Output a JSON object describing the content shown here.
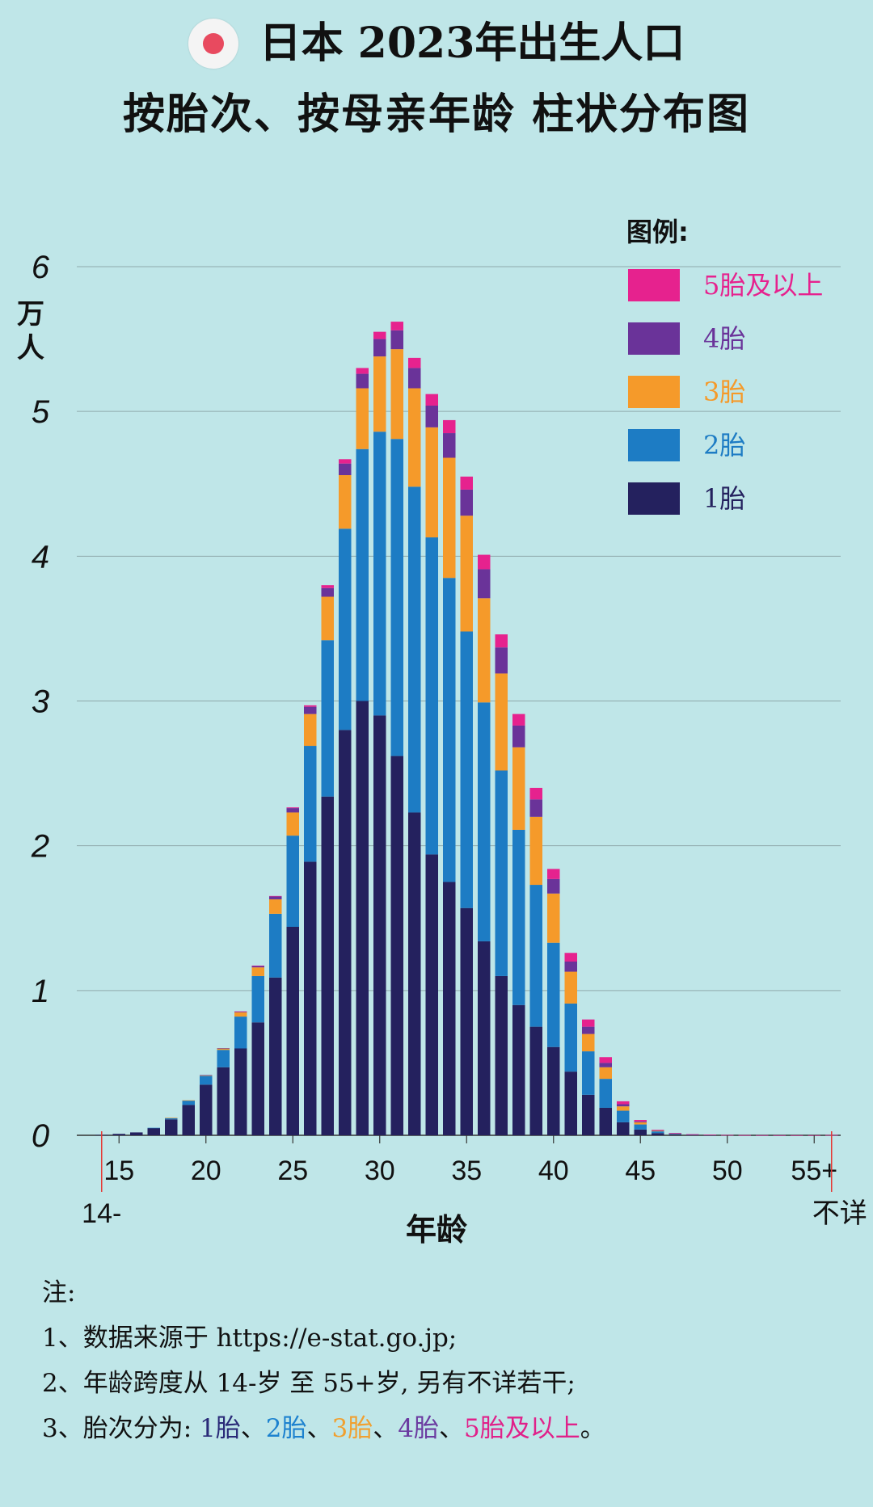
{
  "title": {
    "line1": "日本 2023年出生人口",
    "line2": "按胎次、按母亲年龄 柱状分布图"
  },
  "colors": {
    "background": "#bfe6e8",
    "first": "#24215e",
    "second": "#1d7cc4",
    "third": "#f59a2a",
    "fourth": "#6a3399",
    "fifth_plus": "#e6228e",
    "flag_red": "#e84a5f"
  },
  "icons": [
    "japan-flag-icon"
  ],
  "chart_data": {
    "type": "bar",
    "stacked": true,
    "ylabel": "万人",
    "xlabel": "年龄",
    "ylim": [
      0,
      6
    ],
    "yticks": [
      "0",
      "1",
      "2",
      "3",
      "4",
      "5",
      "6"
    ],
    "xtick_labels": [
      "15",
      "20",
      "25",
      "30",
      "35",
      "40",
      "45",
      "50",
      "55+"
    ],
    "x_end_labels": {
      "left": "14-",
      "right": "不详"
    },
    "grid": true,
    "legend_title": "图例:",
    "legend_position": "top-right",
    "legend": [
      "5胎及以上",
      "4胎",
      "3胎",
      "2胎",
      "1胎"
    ],
    "categories": [
      "14-",
      "15",
      "16",
      "17",
      "18",
      "19",
      "20",
      "21",
      "22",
      "23",
      "24",
      "25",
      "26",
      "27",
      "28",
      "29",
      "30",
      "31",
      "32",
      "33",
      "34",
      "35",
      "36",
      "37",
      "38",
      "39",
      "40",
      "41",
      "42",
      "43",
      "44",
      "45",
      "46",
      "47",
      "48",
      "49",
      "50",
      "51",
      "52",
      "53",
      "54",
      "55+",
      "不详"
    ],
    "series": [
      {
        "name": "1胎",
        "values": [
          0.003,
          0.01,
          0.02,
          0.05,
          0.11,
          0.21,
          0.35,
          0.47,
          0.6,
          0.78,
          1.09,
          1.44,
          1.89,
          2.34,
          2.8,
          3.0,
          2.9,
          2.62,
          2.23,
          1.94,
          1.75,
          1.57,
          1.34,
          1.1,
          0.9,
          0.75,
          0.61,
          0.44,
          0.28,
          0.19,
          0.09,
          0.04,
          0.015,
          0.006,
          0.003,
          0.002,
          0.001,
          0.0005,
          0.0003,
          0.0002,
          0.0001,
          0.0001,
          0.001
        ]
      },
      {
        "name": "2胎",
        "values": [
          0,
          0,
          0,
          0.002,
          0.01,
          0.03,
          0.06,
          0.12,
          0.22,
          0.32,
          0.44,
          0.63,
          0.8,
          1.08,
          1.39,
          1.74,
          1.96,
          2.19,
          2.25,
          2.19,
          2.1,
          1.91,
          1.65,
          1.42,
          1.21,
          0.98,
          0.72,
          0.47,
          0.3,
          0.2,
          0.08,
          0.035,
          0.012,
          0.005,
          0.002,
          0.001,
          0.0005,
          0.0003,
          0.0002,
          0.0001,
          0.0001,
          0.0001,
          0.0005
        ]
      },
      {
        "name": "3胎",
        "values": [
          0,
          0,
          0,
          0,
          0.001,
          0.002,
          0.005,
          0.01,
          0.03,
          0.06,
          0.1,
          0.16,
          0.22,
          0.3,
          0.37,
          0.42,
          0.52,
          0.62,
          0.68,
          0.76,
          0.83,
          0.8,
          0.72,
          0.67,
          0.57,
          0.47,
          0.34,
          0.22,
          0.12,
          0.08,
          0.03,
          0.015,
          0.005,
          0.002,
          0.001,
          0.0005,
          0.0003,
          0.0002,
          0.0001,
          0.0001,
          0.0001,
          0.0001,
          0.0002
        ]
      },
      {
        "name": "4胎",
        "values": [
          0,
          0,
          0,
          0,
          0,
          0,
          0.001,
          0.002,
          0.005,
          0.01,
          0.02,
          0.03,
          0.05,
          0.06,
          0.08,
          0.1,
          0.12,
          0.13,
          0.14,
          0.15,
          0.17,
          0.18,
          0.2,
          0.18,
          0.15,
          0.12,
          0.1,
          0.07,
          0.05,
          0.03,
          0.015,
          0.006,
          0.002,
          0.001,
          0.0005,
          0.0002,
          0.0001,
          0.0001,
          0.0001,
          0.0001,
          0.0001,
          0.0001,
          0.0001
        ]
      },
      {
        "name": "5胎及以上",
        "values": [
          0,
          0,
          0,
          0,
          0,
          0,
          0,
          0,
          0.001,
          0.002,
          0.003,
          0.005,
          0.01,
          0.02,
          0.03,
          0.04,
          0.05,
          0.06,
          0.07,
          0.08,
          0.09,
          0.09,
          0.1,
          0.09,
          0.08,
          0.08,
          0.07,
          0.06,
          0.05,
          0.04,
          0.02,
          0.01,
          0.004,
          0.002,
          0.001,
          0.0005,
          0.0002,
          0.0001,
          0.0001,
          0.0001,
          0.0001,
          0.0001,
          0.0001
        ]
      }
    ]
  },
  "notes": {
    "heading": "注:",
    "line1": "1、数据来源于 https://e-stat.go.jp;",
    "line2": "2、年龄跨度从 14-岁 至 55+岁, 另有不详若干;",
    "line3_prefix": "3、胎次分为:",
    "line3_items": [
      "1胎",
      "、",
      "2胎",
      "、",
      "3胎",
      "、",
      "4胎",
      "、",
      "5胎及以上",
      "。"
    ]
  }
}
